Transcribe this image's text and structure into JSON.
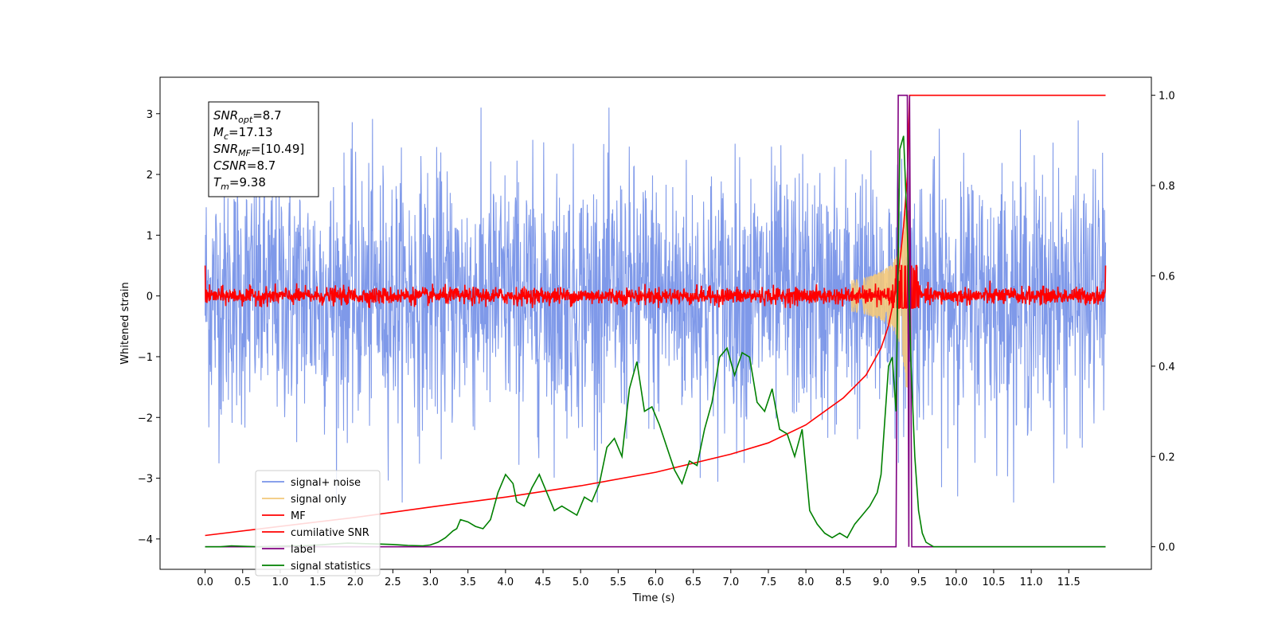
{
  "chart_data": {
    "type": "line",
    "xlabel": "Time (s)",
    "ylabel": "Whitened strain",
    "xlim": [
      -0.6,
      12.6
    ],
    "ylim": [
      -4.5,
      3.6
    ],
    "y2lim": [
      -0.05,
      1.04
    ],
    "x_ticks": [
      "0.0",
      "0.5",
      "1.0",
      "1.5",
      "2.0",
      "2.5",
      "3.0",
      "3.5",
      "4.0",
      "4.5",
      "5.0",
      "5.5",
      "6.0",
      "6.5",
      "7.0",
      "7.5",
      "8.0",
      "8.5",
      "9.0",
      "9.5",
      "10.0",
      "10.5",
      "11.0",
      "11.5"
    ],
    "x_tick_values": [
      0,
      0.5,
      1,
      1.5,
      2,
      2.5,
      3,
      3.5,
      4,
      4.5,
      5,
      5.5,
      6,
      6.5,
      7,
      7.5,
      8,
      8.5,
      9,
      9.5,
      10,
      10.5,
      11,
      11.5
    ],
    "y_ticks": [
      "3",
      "2",
      "1",
      "0",
      "−1",
      "−2",
      "−3",
      "−4"
    ],
    "y_tick_values": [
      3,
      2,
      1,
      0,
      -1,
      -2,
      -3,
      -4
    ],
    "y2_ticks": [
      "1.0",
      "0.8",
      "0.6",
      "0.4",
      "0.2",
      "0.0"
    ],
    "y2_tick_values": [
      1.0,
      0.8,
      0.6,
      0.4,
      0.2,
      0.0
    ],
    "annotation": {
      "lines": [
        {
          "sym": "SNR",
          "sub": "opt",
          "val": "=8.7"
        },
        {
          "sym": "M",
          "sub": "c",
          "val": "=17.13"
        },
        {
          "sym": "SNR",
          "sub": "MF",
          "val": "=[10.49]"
        },
        {
          "sym": "CSNR",
          "sub": "",
          "val": "=8.7"
        },
        {
          "sym": "T",
          "sub": "m",
          "val": "=9.38"
        }
      ]
    },
    "legend_position": "lower-left",
    "series": [
      {
        "name": "signal+ noise",
        "color": "#7893e8",
        "axis": "left",
        "style": "noise",
        "amplitude_sd": 1.0,
        "x_range": [
          0,
          11.99
        ]
      },
      {
        "name": "signal only",
        "color": "#f3c87a",
        "axis": "left",
        "style": "chirp",
        "peak_time": 9.35,
        "peak_amplitude": 1.2
      },
      {
        "name": "MF",
        "color": "#ff0000",
        "axis": "left",
        "style": "noise",
        "amplitude_sd": 0.07,
        "x_range": [
          0,
          11.99
        ]
      },
      {
        "name": "cumilative SNR",
        "color": "#ff0000",
        "axis": "right",
        "x": [
          0,
          1,
          2,
          3,
          4,
          5,
          6,
          7,
          7.5,
          8,
          8.5,
          8.8,
          9.0,
          9.1,
          9.2,
          9.25,
          9.3,
          9.35,
          9.38,
          11.99
        ],
        "y": [
          0.025,
          0.045,
          0.065,
          0.088,
          0.11,
          0.135,
          0.165,
          0.205,
          0.23,
          0.27,
          0.33,
          0.38,
          0.44,
          0.49,
          0.57,
          0.63,
          0.71,
          0.82,
          1.0,
          1.0
        ]
      },
      {
        "name": "label",
        "color": "#800080",
        "axis": "right",
        "x": [
          0,
          9.2,
          9.23,
          9.35,
          9.37,
          9.38,
          9.41,
          11.99
        ],
        "y": [
          0,
          0,
          1.0,
          1.0,
          0,
          1.0,
          0,
          0
        ]
      },
      {
        "name": "signal statistics",
        "color": "#008000",
        "axis": "right",
        "x": [
          0,
          0.2,
          0.35,
          0.5,
          0.7,
          0.9,
          1.1,
          1.3,
          1.5,
          1.7,
          1.9,
          2.1,
          2.3,
          2.5,
          2.7,
          2.9,
          3.0,
          3.1,
          3.2,
          3.3,
          3.35,
          3.4,
          3.5,
          3.6,
          3.7,
          3.8,
          3.9,
          4.0,
          4.1,
          4.15,
          4.25,
          4.35,
          4.45,
          4.55,
          4.65,
          4.75,
          4.85,
          4.95,
          5.05,
          5.15,
          5.25,
          5.35,
          5.45,
          5.55,
          5.65,
          5.75,
          5.85,
          5.95,
          6.05,
          6.15,
          6.25,
          6.35,
          6.45,
          6.55,
          6.65,
          6.75,
          6.85,
          6.95,
          7.05,
          7.15,
          7.25,
          7.35,
          7.45,
          7.55,
          7.65,
          7.75,
          7.85,
          7.95,
          8.05,
          8.15,
          8.25,
          8.35,
          8.45,
          8.55,
          8.65,
          8.75,
          8.85,
          8.95,
          9.0,
          9.05,
          9.1,
          9.15,
          9.2,
          9.25,
          9.3,
          9.35,
          9.4,
          9.45,
          9.5,
          9.55,
          9.6,
          9.7,
          9.8,
          10,
          10.5,
          11,
          11.5,
          11.99
        ],
        "y": [
          0,
          0,
          0.002,
          0.001,
          0,
          0.001,
          0.002,
          0.002,
          0.004,
          0.006,
          0.008,
          0.007,
          0.006,
          0.005,
          0.003,
          0.002,
          0.004,
          0.01,
          0.02,
          0.035,
          0.04,
          0.06,
          0.055,
          0.045,
          0.04,
          0.06,
          0.12,
          0.16,
          0.14,
          0.1,
          0.09,
          0.13,
          0.16,
          0.12,
          0.08,
          0.09,
          0.08,
          0.07,
          0.11,
          0.1,
          0.14,
          0.22,
          0.24,
          0.2,
          0.35,
          0.41,
          0.3,
          0.31,
          0.27,
          0.22,
          0.17,
          0.14,
          0.19,
          0.18,
          0.26,
          0.32,
          0.42,
          0.44,
          0.38,
          0.43,
          0.42,
          0.32,
          0.3,
          0.35,
          0.26,
          0.25,
          0.2,
          0.26,
          0.08,
          0.05,
          0.03,
          0.02,
          0.03,
          0.02,
          0.05,
          0.07,
          0.09,
          0.12,
          0.16,
          0.28,
          0.4,
          0.42,
          0.3,
          0.88,
          0.91,
          0.7,
          0.4,
          0.2,
          0.08,
          0.03,
          0.01,
          0,
          0,
          0,
          0,
          0,
          0,
          0
        ]
      }
    ]
  }
}
